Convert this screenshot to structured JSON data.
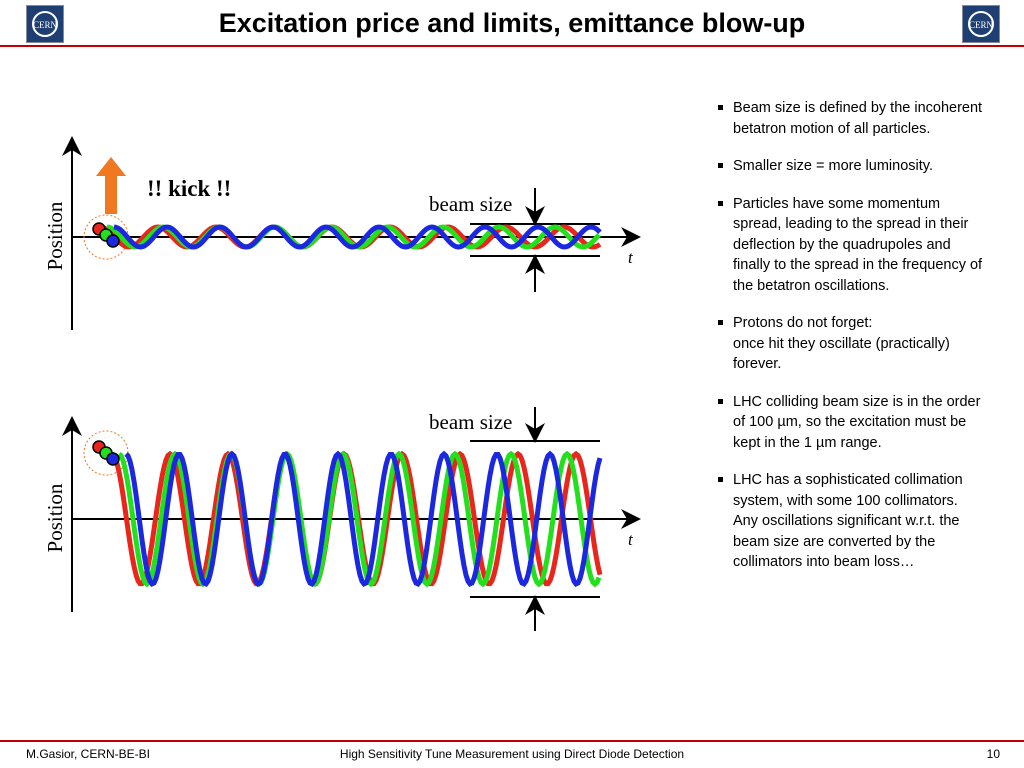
{
  "header": {
    "title": "Excitation price and limits, emittance blow-up"
  },
  "diagrams": [
    {
      "kick": "!! kick !!",
      "beam_size": "beam size",
      "y_axis": "Position",
      "x_axis": "t"
    },
    {
      "beam_size": "beam size",
      "y_axis": "Position",
      "x_axis": "t"
    }
  ],
  "bullets": [
    "Beam size is defined by the incoherent betatron motion of all particles.",
    "Smaller size = more luminosity.",
    "Particles have some momentum spread, leading to the spread in their deflection by the quadrupoles and finally to the spread in the frequency of the betatron oscillations.",
    "Protons do not forget:\nonce hit they oscillate (practically) forever.",
    "LHC colliding beam size is in the order of 100 µm, so the excitation must be kept in the 1 µm range.",
    "LHC has a sophisticated collimation system, with some 100 collimators. Any oscillations significant w.r.t. the beam size are converted by the collimators into beam loss…"
  ],
  "footer": {
    "author": "M.Gasior, CERN-BE-BI",
    "talk": "High Sensitivity Tune Measurement using Direct Diode Detection",
    "page": "10"
  }
}
